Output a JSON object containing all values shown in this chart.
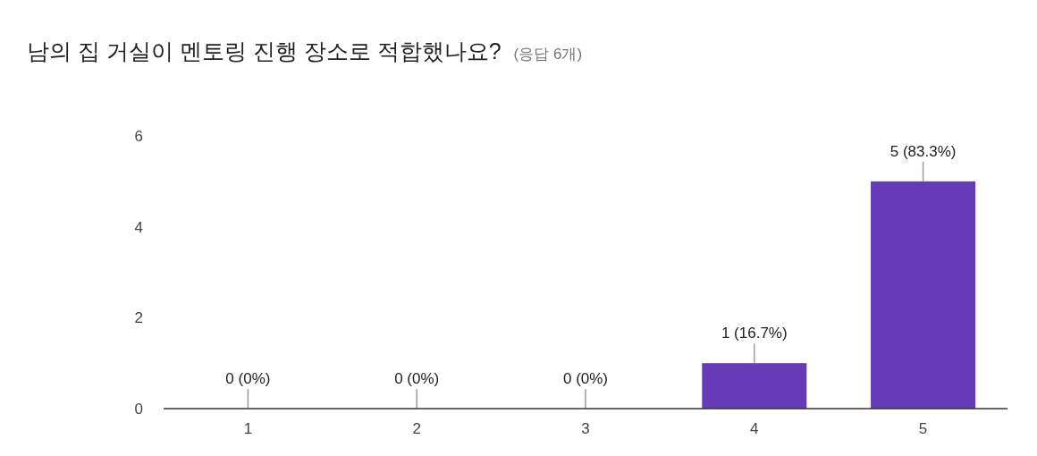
{
  "chart_data": {
    "type": "bar",
    "title": "남의 집 거실이 멘토링 진행 장소로 적합했나요?",
    "subtitle": "(응답 6개)",
    "categories": [
      "1",
      "2",
      "3",
      "4",
      "5"
    ],
    "values": [
      0,
      0,
      0,
      1,
      5
    ],
    "value_labels": [
      "0 (0%)",
      "0 (0%)",
      "0 (0%)",
      "1 (16.7%)",
      "5 (83.3%)"
    ],
    "color": "#673ab7",
    "ylim": [
      0,
      6
    ],
    "yticks": [
      0,
      2,
      4,
      6
    ],
    "grid": false
  }
}
